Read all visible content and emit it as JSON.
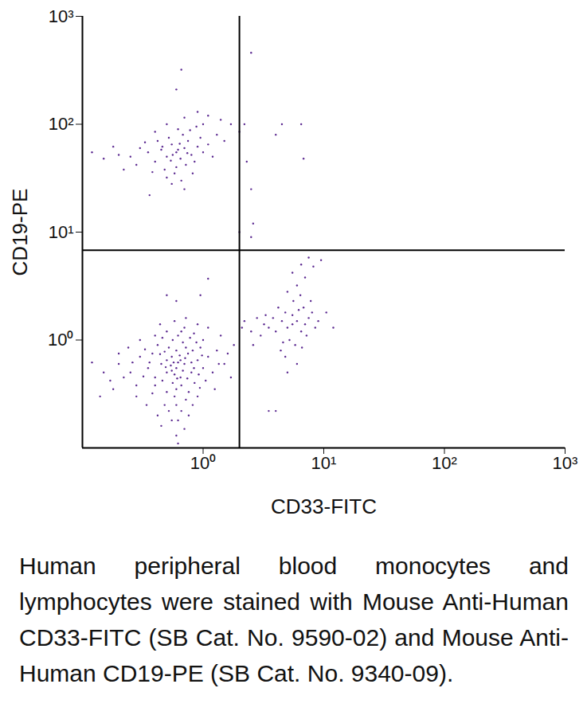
{
  "chart_data": {
    "type": "scatter",
    "xlabel": "CD33-FITC",
    "ylabel": "CD19-PE",
    "caption": "Human peripheral blood monocytes and lymphocytes were stained with Mouse Anti-Human CD33-FITC (SB Cat. No. 9590-02) and Mouse Anti-Human CD19-PE (SB Cat. No. 9340-09).",
    "log": true,
    "grid": false,
    "color": "#5c2a91",
    "marker": "dot",
    "xlim": [
      0.1,
      1000
    ],
    "ylim": [
      0.1,
      1000
    ],
    "xticks": [
      {
        "value": 1,
        "label": "10⁰"
      },
      {
        "value": 10,
        "label": "10¹"
      },
      {
        "value": 100,
        "label": "10²"
      },
      {
        "value": 1000,
        "label": "10³"
      }
    ],
    "yticks": [
      {
        "value": 1,
        "label": "10⁰"
      },
      {
        "value": 10,
        "label": "10¹"
      },
      {
        "value": 100,
        "label": "10²"
      },
      {
        "value": 1000,
        "label": "10³"
      }
    ],
    "quadrant_lines": {
      "x": 2,
      "y": 6.8
    },
    "points": [
      [
        0.6,
        0.55
      ],
      [
        0.5,
        0.5
      ],
      [
        0.7,
        0.6
      ],
      [
        0.55,
        0.7
      ],
      [
        0.65,
        0.45
      ],
      [
        0.45,
        0.6
      ],
      [
        0.8,
        0.5
      ],
      [
        0.4,
        0.45
      ],
      [
        0.75,
        0.75
      ],
      [
        0.6,
        0.35
      ],
      [
        0.52,
        0.85
      ],
      [
        0.68,
        0.95
      ],
      [
        0.35,
        0.55
      ],
      [
        0.9,
        0.65
      ],
      [
        0.85,
        0.4
      ],
      [
        0.3,
        0.7
      ],
      [
        0.58,
        0.3
      ],
      [
        0.48,
        0.25
      ],
      [
        0.72,
        0.28
      ],
      [
        0.62,
        1.1
      ],
      [
        0.42,
        0.9
      ],
      [
        0.95,
        0.85
      ],
      [
        1.0,
        0.55
      ],
      [
        0.25,
        0.5
      ],
      [
        0.28,
        0.38
      ],
      [
        0.33,
        0.82
      ],
      [
        0.38,
        0.32
      ],
      [
        0.78,
        1.05
      ],
      [
        0.88,
        0.95
      ],
      [
        0.5,
        1.2
      ],
      [
        0.66,
        0.22
      ],
      [
        0.55,
        0.18
      ],
      [
        0.45,
        0.16
      ],
      [
        0.7,
        0.15
      ],
      [
        0.6,
        0.13
      ],
      [
        0.2,
        0.6
      ],
      [
        0.22,
        0.45
      ],
      [
        0.18,
        0.35
      ],
      [
        0.15,
        0.5
      ],
      [
        0.12,
        0.62
      ],
      [
        1.1,
        0.7
      ],
      [
        1.2,
        0.5
      ],
      [
        1.3,
        0.8
      ],
      [
        1.5,
        0.6
      ],
      [
        1.7,
        0.45
      ],
      [
        1.8,
        0.9
      ],
      [
        1.4,
        1.1
      ],
      [
        1.1,
        1.3
      ],
      [
        0.9,
        1.4
      ],
      [
        0.7,
        1.3
      ],
      [
        0.4,
        1.1
      ],
      [
        0.3,
        1.0
      ],
      [
        0.5,
        0.65
      ],
      [
        0.62,
        0.62
      ],
      [
        0.58,
        0.48
      ],
      [
        0.68,
        0.52
      ],
      [
        0.54,
        0.58
      ],
      [
        0.46,
        0.42
      ],
      [
        0.74,
        0.44
      ],
      [
        0.64,
        0.72
      ],
      [
        0.44,
        0.74
      ],
      [
        0.8,
        0.62
      ],
      [
        0.36,
        0.62
      ],
      [
        0.56,
        0.4
      ],
      [
        0.66,
        0.38
      ],
      [
        0.5,
        0.33
      ],
      [
        0.76,
        0.33
      ],
      [
        0.4,
        0.38
      ],
      [
        0.84,
        0.55
      ],
      [
        0.92,
        0.48
      ],
      [
        0.32,
        0.46
      ],
      [
        0.26,
        0.62
      ],
      [
        0.6,
        0.8
      ],
      [
        0.48,
        0.78
      ],
      [
        0.72,
        0.85
      ],
      [
        0.82,
        0.8
      ],
      [
        0.38,
        0.75
      ],
      [
        0.98,
        0.72
      ],
      [
        1.05,
        0.42
      ],
      [
        0.94,
        0.36
      ],
      [
        0.28,
        0.3
      ],
      [
        0.34,
        0.25
      ],
      [
        0.42,
        0.2
      ],
      [
        0.82,
        0.25
      ],
      [
        0.9,
        0.3
      ],
      [
        0.6,
        0.25
      ],
      [
        0.52,
        0.22
      ],
      [
        0.76,
        0.2
      ],
      [
        0.62,
        0.18
      ],
      [
        0.56,
        1.0
      ],
      [
        0.46,
        1.05
      ],
      [
        0.84,
        1.15
      ],
      [
        0.66,
        1.2
      ],
      [
        0.24,
        0.85
      ],
      [
        0.2,
        0.75
      ],
      [
        0.17,
        0.42
      ],
      [
        0.14,
        0.3
      ],
      [
        1.25,
        0.35
      ],
      [
        1.35,
        0.6
      ],
      [
        1.6,
        0.75
      ],
      [
        0.58,
        1.5
      ],
      [
        0.72,
        1.6
      ],
      [
        0.44,
        1.4
      ],
      [
        1.0,
        1.0
      ],
      [
        0.65,
        0.65
      ],
      [
        0.55,
        0.52
      ],
      [
        0.61,
        0.44
      ],
      [
        0.49,
        0.56
      ],
      [
        0.71,
        0.68
      ],
      [
        0.57,
        0.62
      ],
      [
        1.1,
        3.7
      ],
      [
        0.95,
        2.6
      ],
      [
        0.6,
        2.3
      ],
      [
        0.5,
        2.6
      ],
      [
        0.62,
        0.11
      ],
      [
        0.6,
        55
      ],
      [
        0.5,
        50
      ],
      [
        0.7,
        60
      ],
      [
        0.55,
        65
      ],
      [
        0.65,
        48
      ],
      [
        0.45,
        58
      ],
      [
        0.8,
        52
      ],
      [
        0.4,
        45
      ],
      [
        0.75,
        70
      ],
      [
        0.6,
        40
      ],
      [
        0.52,
        75
      ],
      [
        0.68,
        80
      ],
      [
        0.35,
        55
      ],
      [
        0.9,
        62
      ],
      [
        0.85,
        45
      ],
      [
        0.3,
        60
      ],
      [
        0.58,
        35
      ],
      [
        0.48,
        38
      ],
      [
        0.72,
        42
      ],
      [
        0.62,
        90
      ],
      [
        0.42,
        70
      ],
      [
        0.95,
        75
      ],
      [
        1.0,
        55
      ],
      [
        0.25,
        50
      ],
      [
        0.28,
        42
      ],
      [
        0.33,
        68
      ],
      [
        0.38,
        36
      ],
      [
        0.78,
        88
      ],
      [
        0.88,
        95
      ],
      [
        0.5,
        100
      ],
      [
        0.66,
        30
      ],
      [
        0.55,
        28
      ],
      [
        0.2,
        52
      ],
      [
        0.15,
        48
      ],
      [
        0.12,
        55
      ],
      [
        1.1,
        65
      ],
      [
        1.2,
        50
      ],
      [
        1.3,
        80
      ],
      [
        1.5,
        70
      ],
      [
        1.7,
        100
      ],
      [
        1.4,
        110
      ],
      [
        1.1,
        120
      ],
      [
        0.9,
        130
      ],
      [
        0.7,
        115
      ],
      [
        0.4,
        85
      ],
      [
        0.22,
        38
      ],
      [
        0.18,
        62
      ],
      [
        0.82,
        35
      ],
      [
        0.62,
        58
      ],
      [
        0.54,
        46
      ],
      [
        0.74,
        54
      ],
      [
        0.46,
        62
      ],
      [
        0.64,
        66
      ],
      [
        0.56,
        52
      ],
      [
        0.7,
        25
      ],
      [
        0.36,
        22
      ],
      [
        0.5,
        32
      ],
      [
        0.6,
        210
      ],
      [
        0.66,
        320
      ],
      [
        1.0,
        100
      ],
      [
        2.5,
        460
      ],
      [
        2.2,
        100
      ],
      [
        2.0,
        85
      ],
      [
        2.3,
        45
      ],
      [
        2.5,
        25
      ],
      [
        2.6,
        12
      ],
      [
        2.5,
        9
      ],
      [
        4.5,
        100
      ],
      [
        4.0,
        80
      ],
      [
        6.5,
        100
      ],
      [
        6.8,
        48
      ],
      [
        2.0,
        10
      ],
      [
        5.5,
        1.4
      ],
      [
        5,
        1.3
      ],
      [
        6,
        1.5
      ],
      [
        5.5,
        1.7
      ],
      [
        6.5,
        1.2
      ],
      [
        4.5,
        1.5
      ],
      [
        7,
        1.4
      ],
      [
        4,
        1.2
      ],
      [
        6.2,
        1.9
      ],
      [
        5.2,
        1.0
      ],
      [
        4.8,
        1.8
      ],
      [
        6.8,
        2.0
      ],
      [
        3.8,
        1.6
      ],
      [
        7.5,
        1.6
      ],
      [
        7.2,
        1.1
      ],
      [
        3.5,
        1.3
      ],
      [
        5.8,
        0.9
      ],
      [
        4.6,
        0.95
      ],
      [
        6.6,
        0.85
      ],
      [
        5.6,
        2.3
      ],
      [
        4.2,
        2.0
      ],
      [
        8,
        1.8
      ],
      [
        8.5,
        1.3
      ],
      [
        3.2,
        1.4
      ],
      [
        3,
        1.1
      ],
      [
        3.3,
        1.7
      ],
      [
        4.4,
        0.8
      ],
      [
        7.8,
        2.3
      ],
      [
        6.4,
        2.6
      ],
      [
        5,
        2.8
      ],
      [
        6,
        3.2
      ],
      [
        7,
        3.8
      ],
      [
        6.5,
        5
      ],
      [
        7.5,
        5.8
      ],
      [
        8.2,
        4.8
      ],
      [
        9.5,
        5.5
      ],
      [
        5.5,
        4.2
      ],
      [
        4.8,
        0.7
      ],
      [
        6,
        0.6
      ],
      [
        5,
        0.5
      ],
      [
        9,
        1.5
      ],
      [
        10.5,
        1.8
      ],
      [
        12,
        1.3
      ],
      [
        2.5,
        1.2
      ],
      [
        2.2,
        1.5
      ],
      [
        2.1,
        1.3
      ],
      [
        2.8,
        1.6
      ],
      [
        2.6,
        0.9
      ],
      [
        4,
        0.22
      ],
      [
        3.5,
        0.22
      ]
    ]
  }
}
